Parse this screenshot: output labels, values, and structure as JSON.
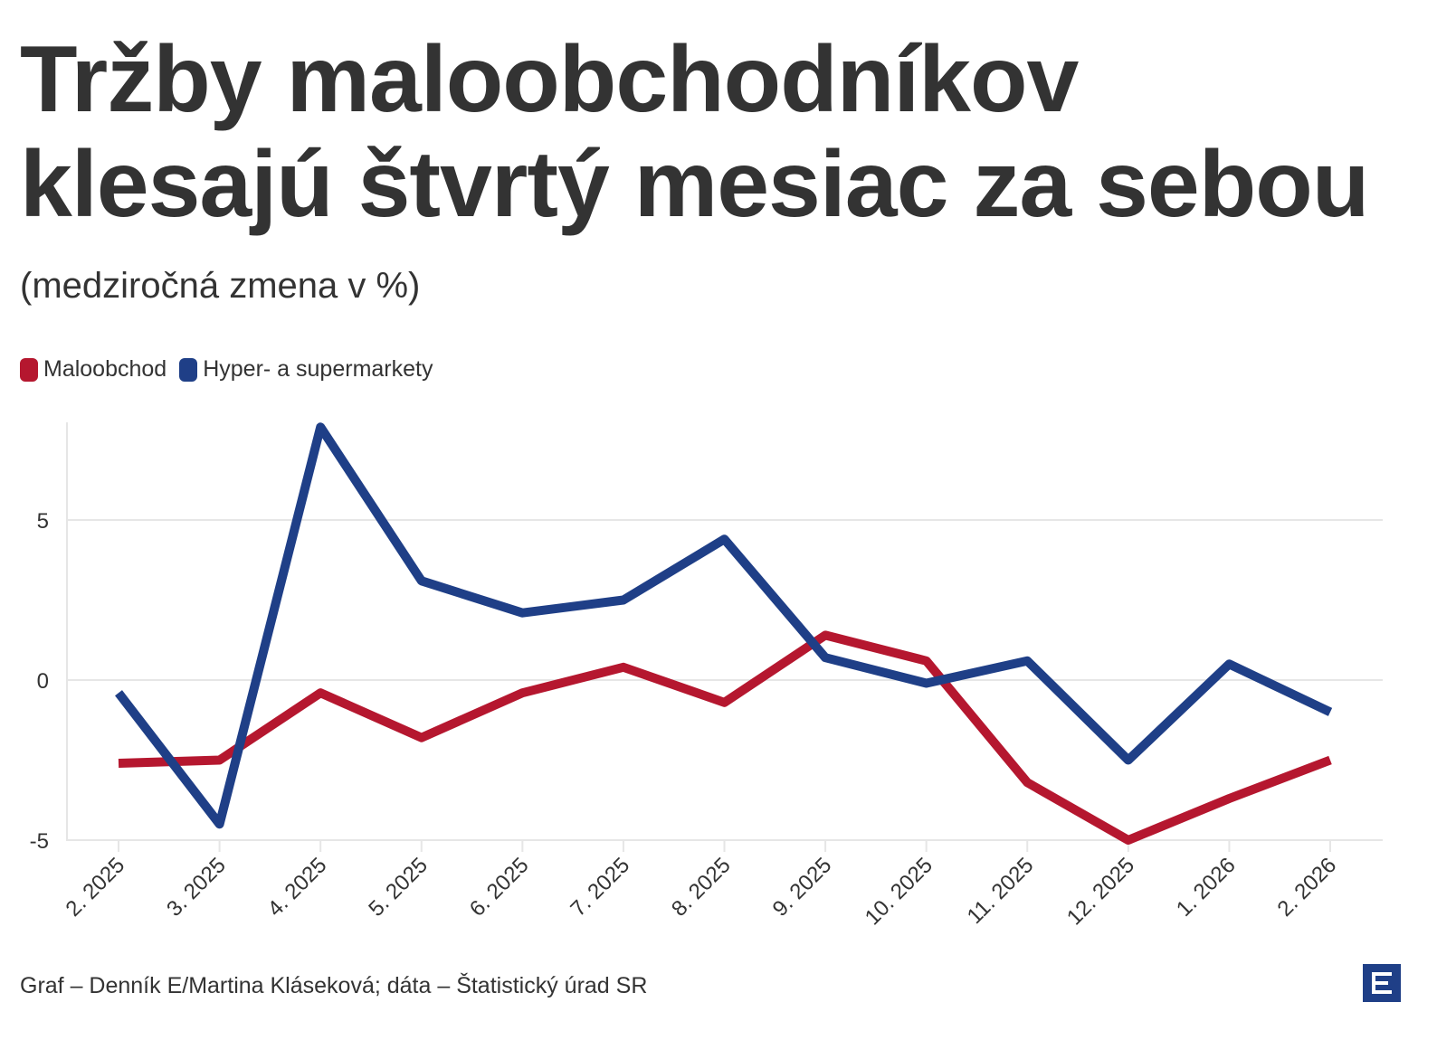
{
  "title": "Tržby maloobchodníkov klesajú štvrtý mesiac za sebou",
  "subtitle": "(medziročná zmena v %)",
  "footer": "Graf – Denník E/Martina Kláseková; dáta – Štatistický úrad SR",
  "logo_icon": "denik-e-logo-icon",
  "colors": {
    "maloobchod": "#b5172f",
    "hyper": "#1f3f87",
    "grid": "#e6e6e6",
    "logo": "#1f3f87"
  },
  "chart_data": {
    "type": "line",
    "categories": [
      "2. 2025",
      "3. 2025",
      "4. 2025",
      "5. 2025",
      "6. 2025",
      "7. 2025",
      "8. 2025",
      "9. 2025",
      "10. 2025",
      "11. 2025",
      "12. 2025",
      "1. 2026",
      "2. 2026"
    ],
    "series": [
      {
        "name": "Maloobchod",
        "color": "#b5172f",
        "values": [
          -2.6,
          -2.5,
          -0.4,
          -1.8,
          -0.4,
          0.4,
          -0.7,
          1.4,
          0.6,
          -3.2,
          -5.0,
          -3.7,
          -2.5
        ]
      },
      {
        "name": "Hyper- a supermarkety",
        "color": "#1f3f87",
        "values": [
          -0.4,
          -4.5,
          7.9,
          3.1,
          2.1,
          2.5,
          4.4,
          0.7,
          -0.1,
          0.6,
          -2.5,
          0.5,
          -1.0
        ]
      }
    ],
    "yticks": [
      -5,
      0,
      5
    ],
    "ylim": [
      -5,
      8
    ],
    "legend": "top-left",
    "grid": true
  }
}
